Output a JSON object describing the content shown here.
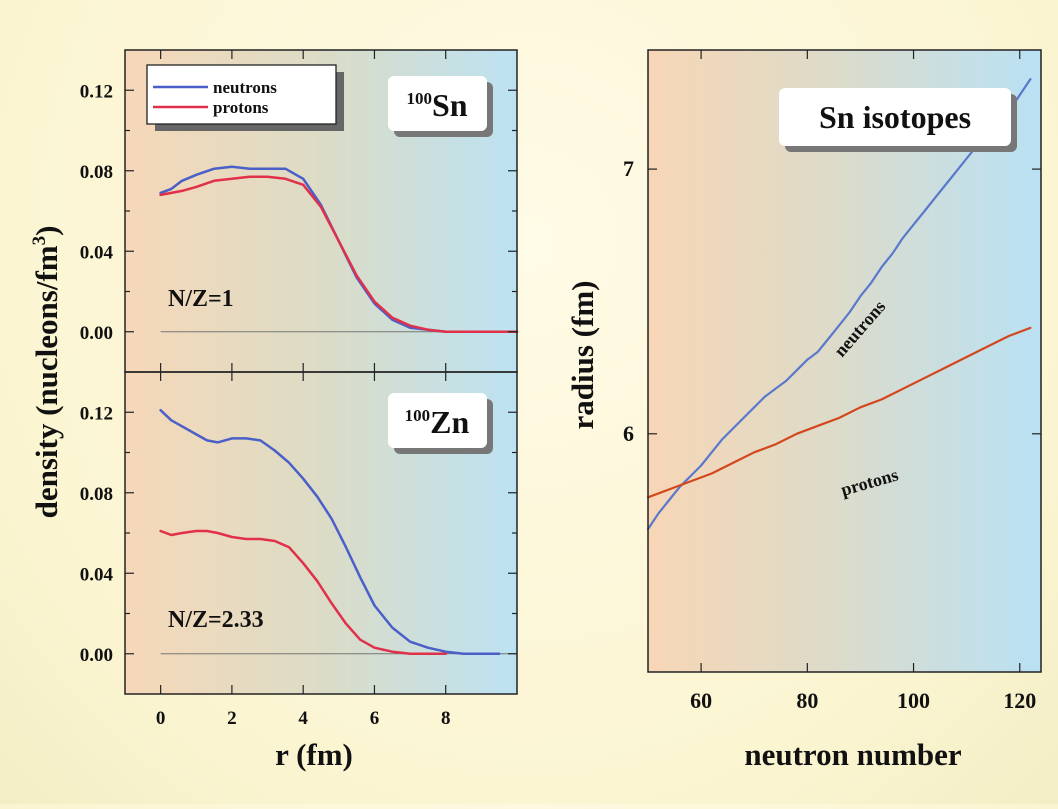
{
  "chart_data": [
    {
      "type": "line",
      "panel": "top-left",
      "label_mass": "100",
      "label_element": "Sn",
      "annotation": "N/Z=1",
      "xlim": [
        -1,
        10
      ],
      "ylim": [
        -0.02,
        0.14
      ],
      "yticks": [
        0.0,
        0.04,
        0.08,
        0.12
      ],
      "ytick_labels": [
        "0.00",
        "0.04",
        "0.08",
        "0.12"
      ],
      "grid": false,
      "legend": {
        "position": "top-left",
        "entries": [
          "neutrons",
          "protons"
        ]
      },
      "series": [
        {
          "name": "neutrons",
          "color": "#4a5fc8",
          "x": [
            0,
            0.3,
            0.6,
            1.0,
            1.5,
            2.0,
            2.5,
            3.0,
            3.5,
            4.0,
            4.5,
            5.0,
            5.5,
            6.0,
            6.5,
            7.0,
            7.5,
            8.0,
            9.0,
            10.0
          ],
          "y": [
            0.069,
            0.071,
            0.075,
            0.078,
            0.081,
            0.082,
            0.081,
            0.081,
            0.081,
            0.076,
            0.063,
            0.045,
            0.027,
            0.014,
            0.006,
            0.002,
            0.001,
            0.0,
            0.0,
            0.0
          ]
        },
        {
          "name": "protons",
          "color": "#e0304a",
          "x": [
            0,
            0.3,
            0.6,
            1.0,
            1.5,
            2.0,
            2.5,
            3.0,
            3.5,
            4.0,
            4.5,
            5.0,
            5.5,
            6.0,
            6.5,
            7.0,
            7.5,
            8.0,
            9.0,
            10.0
          ],
          "y": [
            0.068,
            0.069,
            0.07,
            0.072,
            0.075,
            0.076,
            0.077,
            0.077,
            0.076,
            0.073,
            0.062,
            0.045,
            0.028,
            0.015,
            0.007,
            0.003,
            0.001,
            0.0,
            0.0,
            0.0
          ]
        }
      ]
    },
    {
      "type": "line",
      "panel": "bottom-left",
      "label_mass": "100",
      "label_element": "Zn",
      "annotation": "N/Z=2.33",
      "xlim": [
        -1,
        10
      ],
      "ylim": [
        -0.02,
        0.14
      ],
      "xticks": [
        0,
        2,
        4,
        6,
        8
      ],
      "xtick_labels": [
        "0",
        "2",
        "4",
        "6",
        "8"
      ],
      "yticks": [
        0.0,
        0.04,
        0.08,
        0.12
      ],
      "ytick_labels": [
        "0.00",
        "0.04",
        "0.08",
        "0.12"
      ],
      "xlabel": "r (fm)",
      "ylabel_shared": "density (nucleons/fm",
      "ylabel_sup": "3",
      "ylabel_close": ")",
      "grid": false,
      "series": [
        {
          "name": "neutrons",
          "color": "#4a5fc8",
          "x": [
            0,
            0.3,
            0.6,
            1.0,
            1.3,
            1.6,
            2.0,
            2.4,
            2.8,
            3.2,
            3.6,
            4.0,
            4.4,
            4.8,
            5.2,
            5.6,
            6.0,
            6.5,
            7.0,
            7.5,
            8.0,
            8.5,
            9.0,
            9.5
          ],
          "y": [
            0.121,
            0.116,
            0.113,
            0.109,
            0.106,
            0.105,
            0.107,
            0.107,
            0.106,
            0.101,
            0.095,
            0.087,
            0.078,
            0.067,
            0.053,
            0.038,
            0.024,
            0.013,
            0.006,
            0.003,
            0.001,
            0.0,
            0.0,
            0.0
          ]
        },
        {
          "name": "protons",
          "color": "#e0304a",
          "x": [
            0,
            0.3,
            0.6,
            1.0,
            1.3,
            1.6,
            2.0,
            2.4,
            2.8,
            3.2,
            3.6,
            4.0,
            4.4,
            4.8,
            5.2,
            5.6,
            6.0,
            6.5,
            7.0,
            7.5,
            8.0
          ],
          "y": [
            0.061,
            0.059,
            0.06,
            0.061,
            0.061,
            0.06,
            0.058,
            0.057,
            0.057,
            0.056,
            0.053,
            0.045,
            0.036,
            0.025,
            0.015,
            0.007,
            0.003,
            0.001,
            0.0,
            0.0,
            0.0
          ]
        }
      ]
    },
    {
      "type": "line",
      "panel": "right",
      "title": "Sn isotopes",
      "xlabel": "neutron number",
      "ylabel": "radius (fm)",
      "xlim": [
        50,
        124
      ],
      "ylim": [
        5.1,
        7.45
      ],
      "xticks": [
        60,
        80,
        100,
        120
      ],
      "xtick_labels": [
        "60",
        "80",
        "100",
        "120"
      ],
      "yticks": [
        6,
        7
      ],
      "ytick_labels": [
        "6",
        "7"
      ],
      "grid": false,
      "series": [
        {
          "name": "neutrons",
          "color": "#5a78cc",
          "x": [
            50,
            52,
            54,
            56,
            58,
            60,
            62,
            64,
            66,
            68,
            70,
            72,
            74,
            76,
            78,
            80,
            82,
            84,
            86,
            88,
            90,
            92,
            94,
            96,
            98,
            100,
            102,
            104,
            106,
            108,
            110,
            112,
            114,
            116,
            118,
            120,
            122
          ],
          "y": [
            5.64,
            5.7,
            5.75,
            5.8,
            5.84,
            5.88,
            5.93,
            5.98,
            6.02,
            6.06,
            6.1,
            6.14,
            6.17,
            6.2,
            6.24,
            6.28,
            6.31,
            6.36,
            6.41,
            6.46,
            6.52,
            6.57,
            6.63,
            6.68,
            6.74,
            6.79,
            6.84,
            6.89,
            6.94,
            6.99,
            7.04,
            7.09,
            7.13,
            7.17,
            7.22,
            7.28,
            7.34
          ]
        },
        {
          "name": "protons",
          "color": "#d4461c",
          "x": [
            50,
            54,
            58,
            62,
            66,
            70,
            74,
            78,
            82,
            86,
            90,
            94,
            98,
            102,
            106,
            110,
            114,
            118,
            122
          ],
          "y": [
            5.76,
            5.79,
            5.82,
            5.85,
            5.89,
            5.93,
            5.96,
            6.0,
            6.03,
            6.06,
            6.1,
            6.13,
            6.17,
            6.21,
            6.25,
            6.29,
            6.33,
            6.37,
            6.4
          ]
        }
      ]
    }
  ]
}
